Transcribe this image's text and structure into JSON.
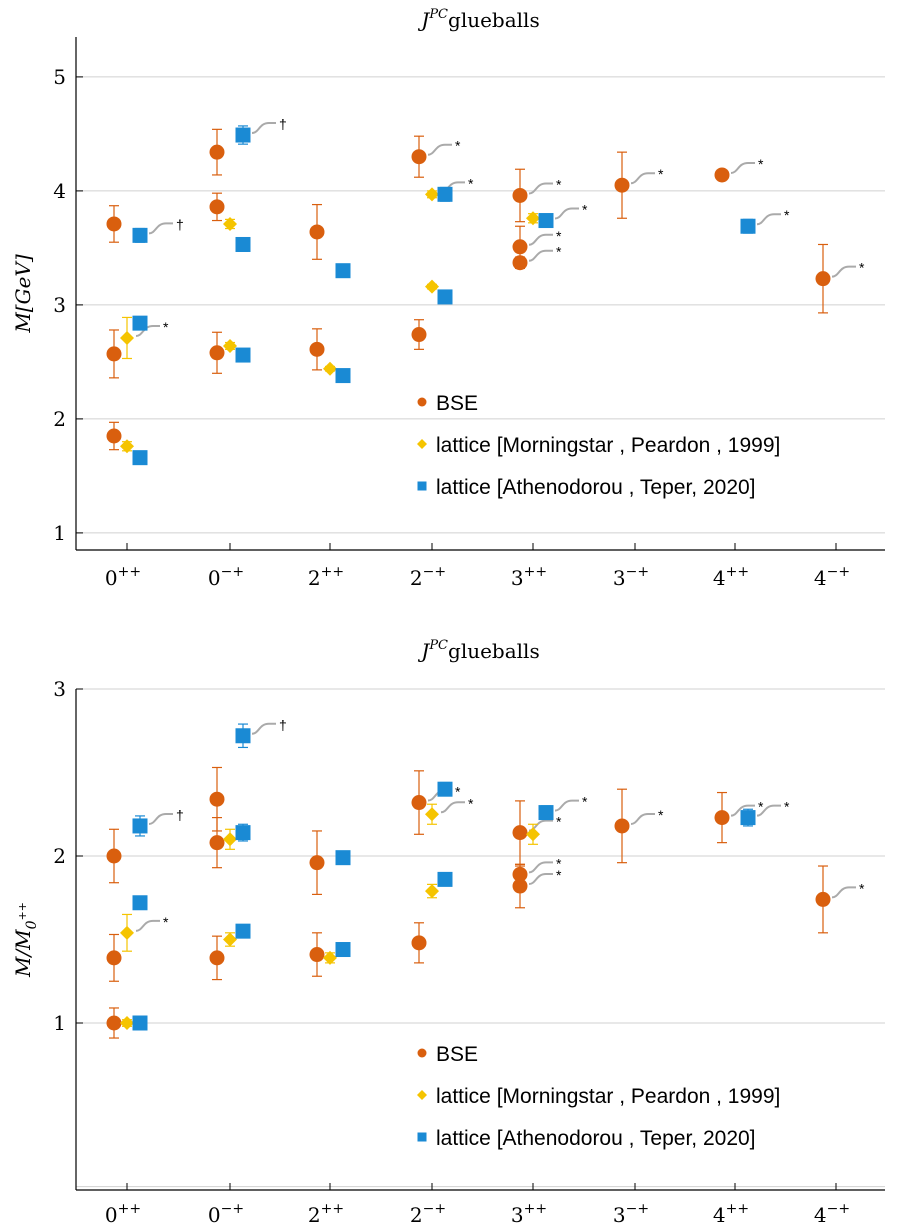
{
  "colors": {
    "bse": "#d95f0e",
    "morningstar": "#f5c400",
    "athenodorou": "#1a8ad4",
    "grid": "#d0d0d0",
    "leader": "#aaaaaa"
  },
  "chart_data": [
    {
      "type": "scatter",
      "title": "J^{PC} glueballs",
      "title_main": "J",
      "title_sup": "PC",
      "title_rest": "glueballs",
      "ylabel": "M[GeV]",
      "ylim": [
        0.85,
        5.35
      ],
      "yticks": [
        1,
        2,
        3,
        4,
        5
      ],
      "grid": "horizontal",
      "legend_position": "lower-center",
      "categories": [
        "0^{++}",
        "0^{-+}",
        "2^{++}",
        "2^{-+}",
        "3^{++}",
        "3^{-+}",
        "4^{++}",
        "4^{-+}"
      ],
      "category_base": [
        "0",
        "0",
        "2",
        "2",
        "3",
        "3",
        "4",
        "4"
      ],
      "category_sup": [
        "++",
        "−+",
        "++",
        "−+",
        "++",
        "−+",
        "++",
        "−+"
      ],
      "series": [
        {
          "name": "BSE",
          "marker": "circle",
          "points": [
            {
              "x": "0^{++}",
              "y": 1.85,
              "err": 0.12
            },
            {
              "x": "0^{++}",
              "y": 2.57,
              "err": 0.21
            },
            {
              "x": "0^{++}",
              "y": 3.71,
              "err": 0.16
            },
            {
              "x": "0^{-+}",
              "y": 2.58,
              "err": 0.18
            },
            {
              "x": "0^{-+}",
              "y": 3.86,
              "err": 0.12
            },
            {
              "x": "0^{-+}",
              "y": 4.34,
              "err": 0.2
            },
            {
              "x": "2^{++}",
              "y": 2.61,
              "err": 0.18
            },
            {
              "x": "2^{++}",
              "y": 3.64,
              "err": 0.24
            },
            {
              "x": "2^{-+}",
              "y": 2.74,
              "err": 0.13
            },
            {
              "x": "2^{-+}",
              "y": 4.3,
              "err": 0.18,
              "note": "*"
            },
            {
              "x": "3^{++}",
              "y": 3.37,
              "err": 0.05,
              "note": "*"
            },
            {
              "x": "3^{++}",
              "y": 3.51,
              "err": 0.18,
              "note": "*"
            },
            {
              "x": "3^{++}",
              "y": 3.96,
              "err": 0.23,
              "note": "*"
            },
            {
              "x": "3^{-+}",
              "y": 4.05,
              "err": 0.29,
              "note": "*"
            },
            {
              "x": "4^{++}",
              "y": 4.14,
              "err": 0.0,
              "note": "*"
            },
            {
              "x": "4^{-+}",
              "y": 3.23,
              "err": 0.3,
              "note": "*"
            }
          ]
        },
        {
          "name": "lattice [Morningstar , Peardon , 1999]",
          "marker": "diamond",
          "points": [
            {
              "x": "0^{++}",
              "y": 1.76,
              "err": 0.04
            },
            {
              "x": "0^{++}",
              "y": 2.71,
              "err": 0.18,
              "note": "*"
            },
            {
              "x": "0^{-+}",
              "y": 2.64,
              "err": 0.03
            },
            {
              "x": "0^{-+}",
              "y": 3.71,
              "err": 0.04
            },
            {
              "x": "2^{++}",
              "y": 2.44,
              "err": 0.02
            },
            {
              "x": "2^{-+}",
              "y": 3.16,
              "err": 0.02
            },
            {
              "x": "2^{-+}",
              "y": 3.97,
              "err": 0.03,
              "note": "*"
            },
            {
              "x": "3^{++}",
              "y": 3.76,
              "err": 0.04
            }
          ]
        },
        {
          "name": "lattice [Athenodorou , Teper, 2020]",
          "marker": "square",
          "points": [
            {
              "x": "0^{++}",
              "y": 1.66,
              "err": 0.02
            },
            {
              "x": "0^{++}",
              "y": 2.84,
              "err": 0.02
            },
            {
              "x": "0^{++}",
              "y": 3.61,
              "err": 0.06,
              "note": "†"
            },
            {
              "x": "0^{-+}",
              "y": 2.56,
              "err": 0.02
            },
            {
              "x": "0^{-+}",
              "y": 3.53,
              "err": 0.06
            },
            {
              "x": "0^{-+}",
              "y": 4.49,
              "err": 0.08,
              "note": "†"
            },
            {
              "x": "2^{++}",
              "y": 2.38,
              "err": 0.02
            },
            {
              "x": "2^{++}",
              "y": 3.3,
              "err": 0.02
            },
            {
              "x": "2^{-+}",
              "y": 3.07,
              "err": 0.03
            },
            {
              "x": "2^{-+}",
              "y": 3.97,
              "err": 0.06
            },
            {
              "x": "3^{++}",
              "y": 3.74,
              "err": 0.05,
              "note": "*"
            },
            {
              "x": "4^{++}",
              "y": 3.69,
              "err": 0.06,
              "note": "*"
            }
          ]
        }
      ]
    },
    {
      "type": "scatter",
      "title": "J^{PC} glueballs",
      "title_main": "J",
      "title_sup": "PC",
      "title_rest": "glueballs",
      "ylabel": "M/M_{0^{++}}",
      "ylim": [
        0.0,
        3.0
      ],
      "yticks": [
        1,
        2,
        3
      ],
      "grid": "horizontal",
      "legend_position": "lower-center",
      "categories": [
        "0^{++}",
        "0^{-+}",
        "2^{++}",
        "2^{-+}",
        "3^{++}",
        "3^{-+}",
        "4^{++}",
        "4^{-+}"
      ],
      "category_base": [
        "0",
        "0",
        "2",
        "2",
        "3",
        "3",
        "4",
        "4"
      ],
      "category_sup": [
        "++",
        "−+",
        "++",
        "−+",
        "++",
        "−+",
        "++",
        "−+"
      ],
      "series": [
        {
          "name": "BSE",
          "marker": "circle",
          "points": [
            {
              "x": "0^{++}",
              "y": 1.0,
              "err": 0.09
            },
            {
              "x": "0^{++}",
              "y": 1.39,
              "err": 0.14
            },
            {
              "x": "0^{++}",
              "y": 2.0,
              "err": 0.16
            },
            {
              "x": "0^{-+}",
              "y": 1.39,
              "err": 0.13
            },
            {
              "x": "0^{-+}",
              "y": 2.08,
              "err": 0.15
            },
            {
              "x": "0^{-+}",
              "y": 2.34,
              "err": 0.19
            },
            {
              "x": "2^{++}",
              "y": 1.41,
              "err": 0.13
            },
            {
              "x": "2^{++}",
              "y": 1.96,
              "err": 0.19
            },
            {
              "x": "2^{-+}",
              "y": 1.48,
              "err": 0.12
            },
            {
              "x": "2^{-+}",
              "y": 2.32,
              "err": 0.19,
              "note": "*"
            },
            {
              "x": "3^{++}",
              "y": 1.82,
              "err": 0.13,
              "note": "*"
            },
            {
              "x": "3^{++}",
              "y": 1.89,
              "err": 0.05,
              "note": "*"
            },
            {
              "x": "3^{++}",
              "y": 2.14,
              "err": 0.19,
              "note": "*"
            },
            {
              "x": "3^{-+}",
              "y": 2.18,
              "err": 0.22,
              "note": "*"
            },
            {
              "x": "4^{++}",
              "y": 2.23,
              "err": 0.15,
              "note": "*"
            },
            {
              "x": "4^{-+}",
              "y": 1.74,
              "err": 0.2,
              "note": "*"
            }
          ]
        },
        {
          "name": "lattice [Morningstar , Peardon , 1999]",
          "marker": "diamond",
          "points": [
            {
              "x": "0^{++}",
              "y": 1.0,
              "err": 0.02
            },
            {
              "x": "0^{++}",
              "y": 1.54,
              "err": 0.11,
              "note": "*"
            },
            {
              "x": "0^{-+}",
              "y": 1.5,
              "err": 0.04
            },
            {
              "x": "0^{-+}",
              "y": 2.1,
              "err": 0.06
            },
            {
              "x": "2^{++}",
              "y": 1.39,
              "err": 0.03
            },
            {
              "x": "2^{-+}",
              "y": 1.79,
              "err": 0.04
            },
            {
              "x": "2^{-+}",
              "y": 2.25,
              "err": 0.06,
              "note": "*"
            },
            {
              "x": "3^{++}",
              "y": 2.13,
              "err": 0.06
            }
          ]
        },
        {
          "name": "lattice [Athenodorou , Teper, 2020]",
          "marker": "square",
          "points": [
            {
              "x": "0^{++}",
              "y": 1.0,
              "err": 0.01
            },
            {
              "x": "0^{++}",
              "y": 1.72,
              "err": 0.02
            },
            {
              "x": "0^{++}",
              "y": 2.18,
              "err": 0.06,
              "note": "†"
            },
            {
              "x": "0^{-+}",
              "y": 1.55,
              "err": 0.02
            },
            {
              "x": "0^{-+}",
              "y": 2.14,
              "err": 0.05
            },
            {
              "x": "0^{-+}",
              "y": 2.72,
              "err": 0.07,
              "note": "†"
            },
            {
              "x": "2^{++}",
              "y": 1.44,
              "err": 0.02
            },
            {
              "x": "2^{++}",
              "y": 1.99,
              "err": 0.02
            },
            {
              "x": "2^{-+}",
              "y": 1.86,
              "err": 0.03
            },
            {
              "x": "2^{-+}",
              "y": 2.4,
              "err": 0.04
            },
            {
              "x": "3^{++}",
              "y": 2.26,
              "err": 0.04,
              "note": "*"
            },
            {
              "x": "4^{++}",
              "y": 2.23,
              "err": 0.05,
              "note": "*"
            }
          ]
        }
      ]
    }
  ]
}
